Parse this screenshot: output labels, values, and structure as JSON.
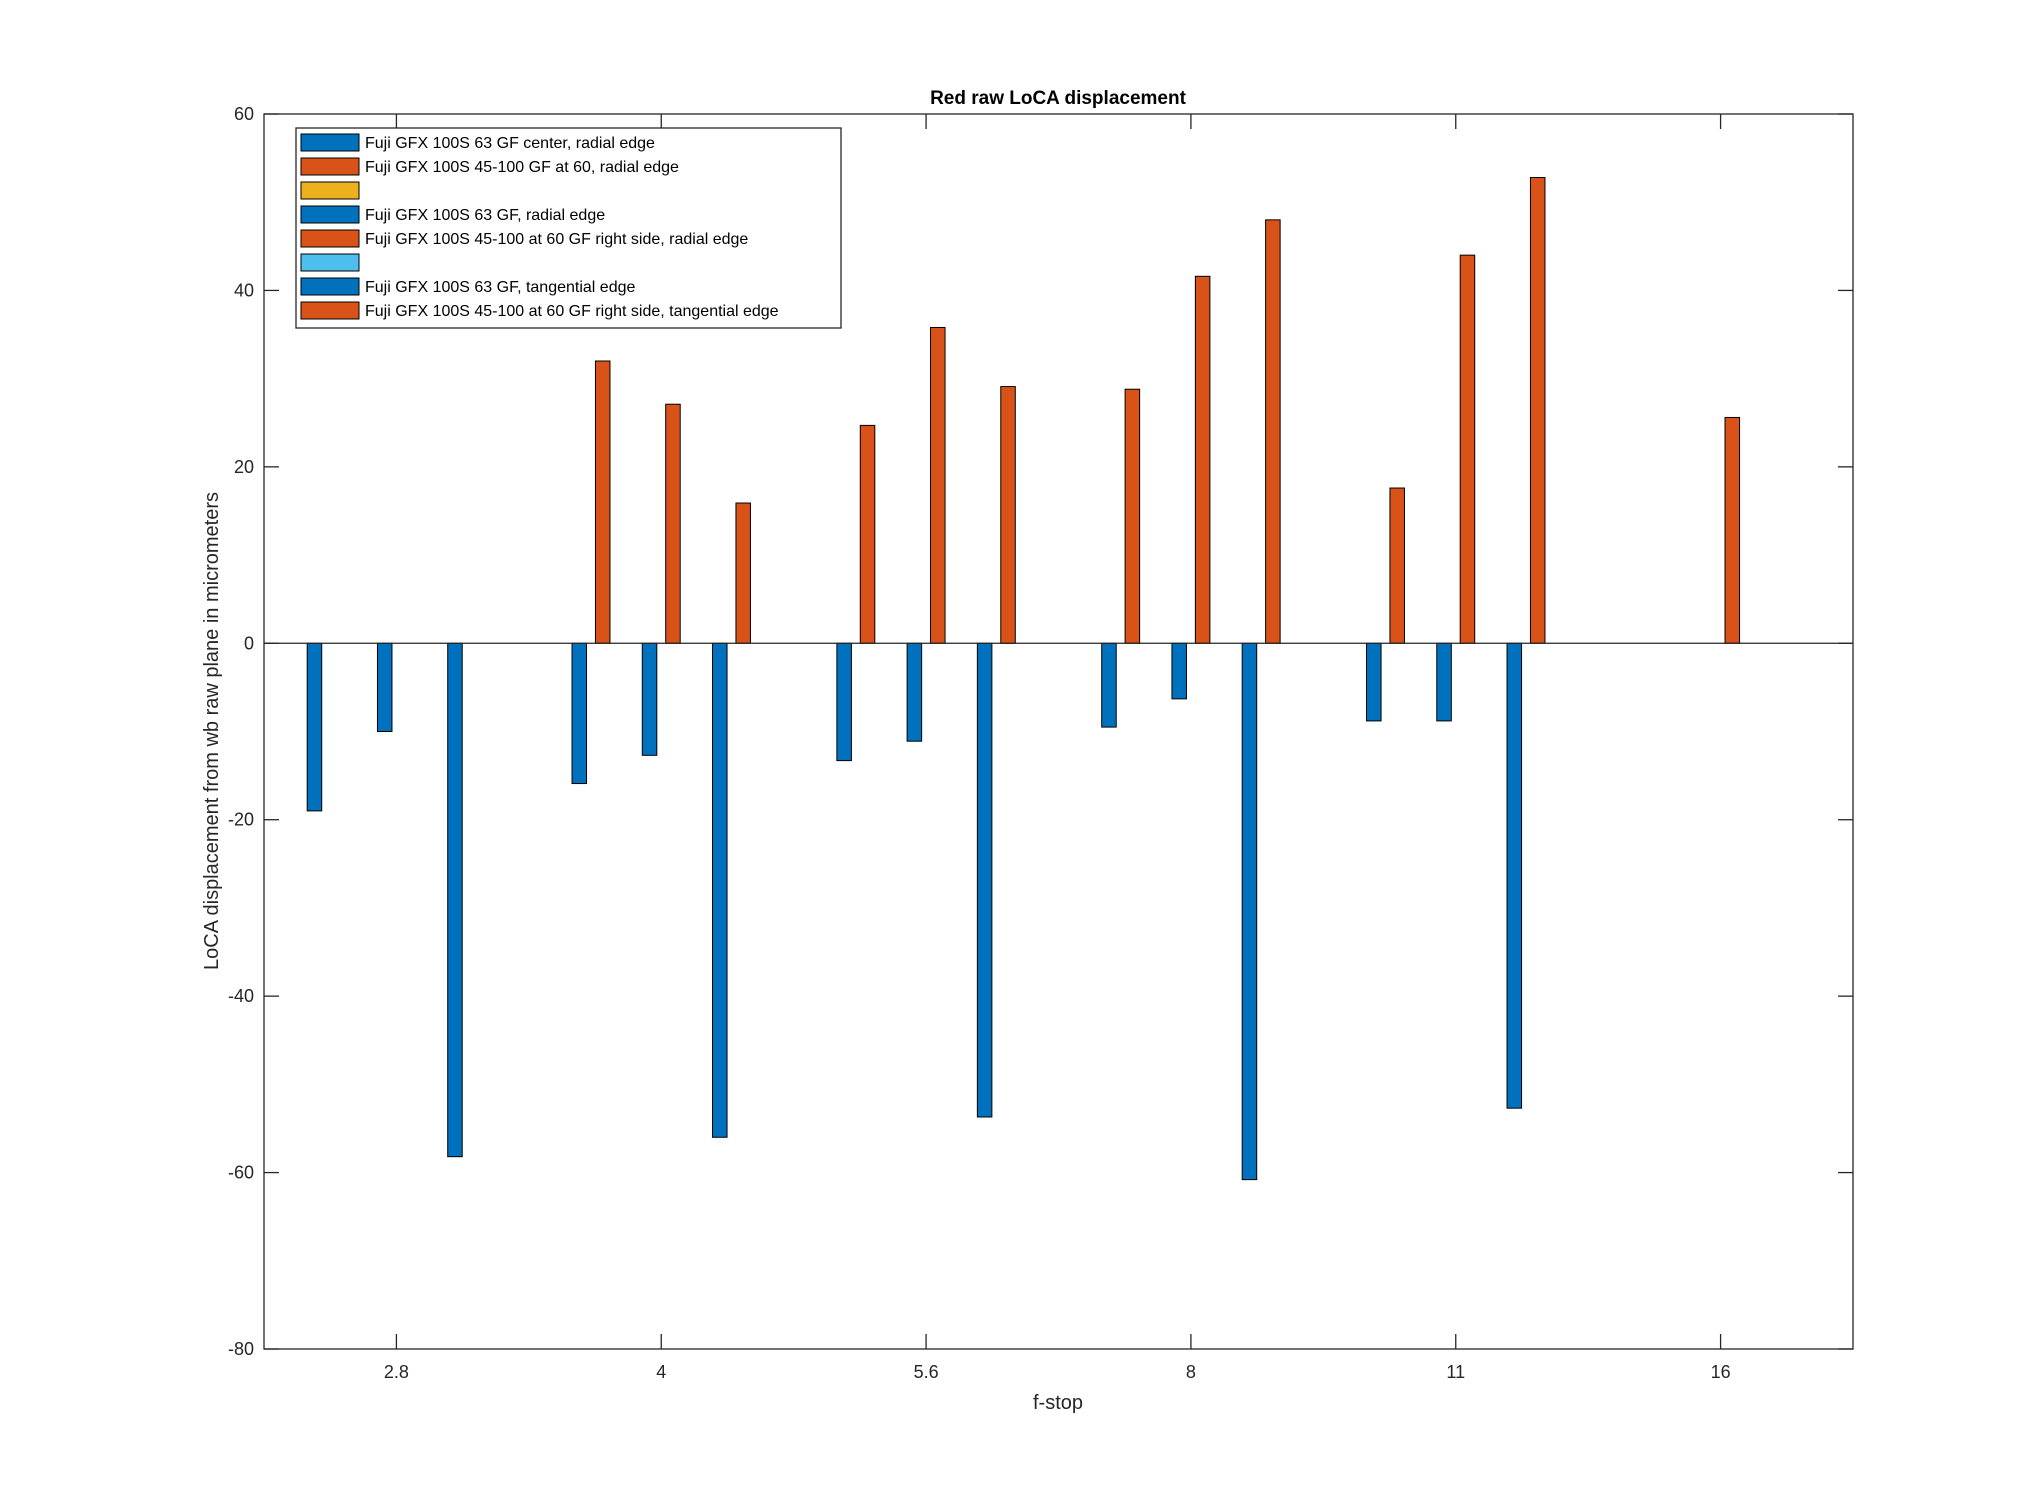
{
  "chart_data": {
    "type": "bar",
    "title": "Red raw  LoCA displacement",
    "xlabel": "f-stop",
    "ylabel": "LoCA displacement from wb raw plane in micrometers",
    "ylim": [
      -80,
      60
    ],
    "yticks": [
      -80,
      -60,
      -40,
      -20,
      0,
      20,
      40,
      60
    ],
    "xticks": [
      "2.8",
      "4",
      "5.6",
      "8",
      "11",
      "16"
    ],
    "grid": false,
    "legend_position": "top-left",
    "series": [
      {
        "name": "Fuji GFX 100S 63 GF center, radial edge",
        "color": "#0072BD",
        "values": [
          -19,
          -15.9,
          -13.3,
          -9.5,
          -8.8,
          0
        ]
      },
      {
        "name": "Fuji GFX 100S 45-100 GF at 60, radial edge",
        "color": "#D95319",
        "values": [
          0,
          32,
          24.7,
          28.8,
          17.6,
          0
        ]
      },
      {
        "name": "",
        "color": "#EDB120",
        "values": [
          0,
          0,
          0,
          0,
          0,
          0
        ]
      },
      {
        "name": "Fuji GFX 100S 63 GF, radial edge",
        "color": "#0072BD",
        "values": [
          -10,
          -12.7,
          -11.1,
          -6.3,
          -8.8,
          0
        ]
      },
      {
        "name": "Fuji GFX 100S 45-100 at 60 GF right side, radial edge",
        "color": "#D95319",
        "values": [
          0,
          27.1,
          35.8,
          41.6,
          44,
          25.6
        ]
      },
      {
        "name": "",
        "color": "#4DBEEE",
        "values": [
          0,
          0,
          0,
          0,
          0,
          0
        ]
      },
      {
        "name": "Fuji GFX 100S 63 GF, tangential edge",
        "color": "#0072BD",
        "values": [
          -58.2,
          -56,
          -53.7,
          -60.8,
          -52.7,
          0
        ]
      },
      {
        "name": "Fuji GFX 100S 45-100 at 60 GF right side, tangential edge",
        "color": "#D95319",
        "values": [
          0,
          15.9,
          29.1,
          48,
          52.8,
          0
        ]
      }
    ]
  }
}
